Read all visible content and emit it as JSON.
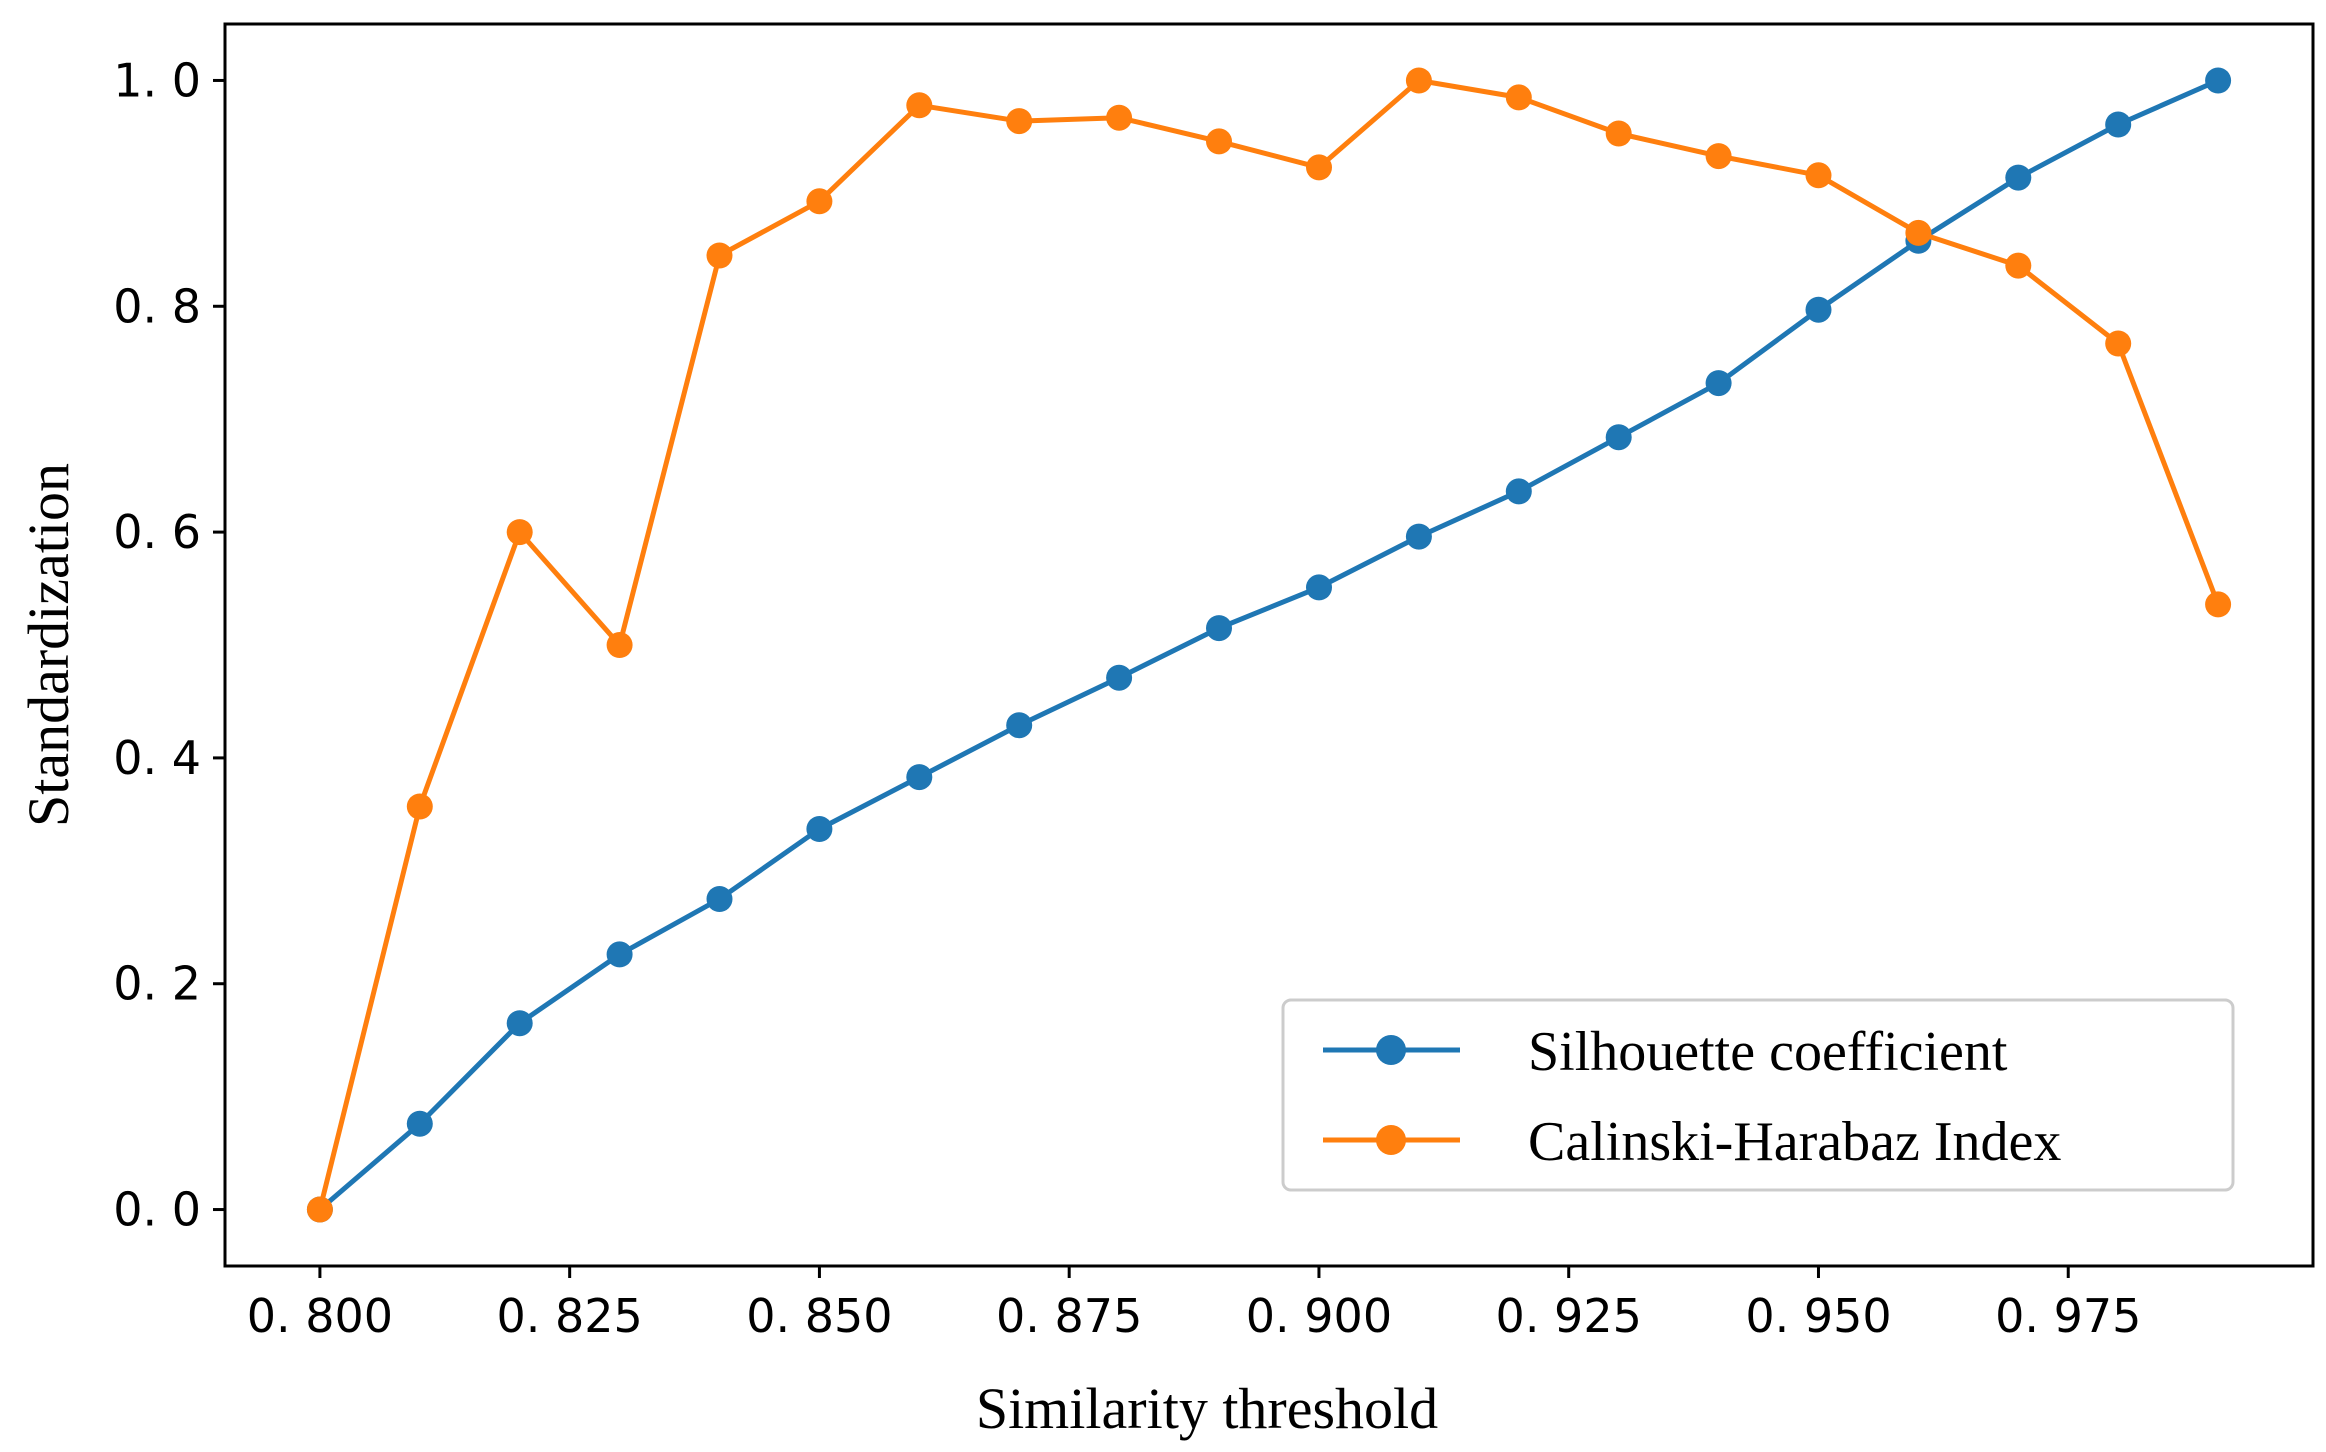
{
  "chart_data": {
    "type": "line",
    "title": "",
    "xlabel": "Similarity threshold",
    "ylabel": "Standardization",
    "xlim": [
      0.7905,
      0.9995
    ],
    "ylim": [
      -0.05,
      1.05
    ],
    "xticks": [
      0.8,
      0.825,
      0.85,
      0.875,
      0.9,
      0.925,
      0.95,
      0.975
    ],
    "xtick_labels": [
      "0. 800",
      "0. 825",
      "0. 850",
      "0. 875",
      "0. 900",
      "0. 925",
      "0. 950",
      "0. 975"
    ],
    "yticks": [
      0.0,
      0.2,
      0.4,
      0.6,
      0.8,
      1.0
    ],
    "ytick_labels": [
      "0. 0",
      "0. 2",
      "0. 4",
      "0. 6",
      "0. 8",
      "1. 0"
    ],
    "grid": false,
    "legend_position": "bottom-right",
    "x": [
      0.8,
      0.81,
      0.82,
      0.83,
      0.84,
      0.85,
      0.86,
      0.87,
      0.88,
      0.89,
      0.9,
      0.91,
      0.92,
      0.93,
      0.94,
      0.95,
      0.96,
      0.97,
      0.98,
      0.99
    ],
    "series": [
      {
        "name": "Silhouette coefficient",
        "color": "#1f77b4",
        "values": [
          0.0,
          0.076,
          0.165,
          0.226,
          0.275,
          0.337,
          0.383,
          0.429,
          0.471,
          0.515,
          0.551,
          0.596,
          0.636,
          0.684,
          0.732,
          0.797,
          0.858,
          0.914,
          0.961,
          1.0
        ]
      },
      {
        "name": "Calinski-Harabaz Index",
        "color": "#ff7f0e",
        "values": [
          0.0,
          0.357,
          0.6,
          0.5,
          0.845,
          0.893,
          0.978,
          0.964,
          0.967,
          0.946,
          0.923,
          1.0,
          0.985,
          0.953,
          0.933,
          0.916,
          0.865,
          0.836,
          0.767,
          0.536
        ]
      }
    ]
  }
}
